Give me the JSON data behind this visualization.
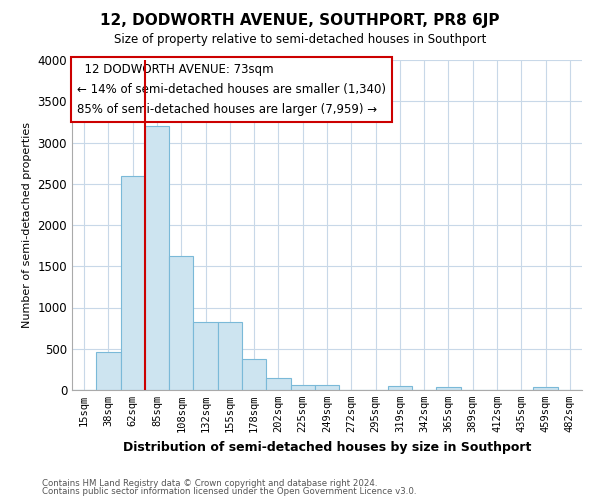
{
  "title": "12, DODWORTH AVENUE, SOUTHPORT, PR8 6JP",
  "subtitle": "Size of property relative to semi-detached houses in Southport",
  "xlabel": "Distribution of semi-detached houses by size in Southport",
  "ylabel": "Number of semi-detached properties",
  "annotation_line1": "12 DODWORTH AVENUE: 73sqm",
  "annotation_line2": "← 14% of semi-detached houses are smaller (1,340)",
  "annotation_line3": "85% of semi-detached houses are larger (7,959) →",
  "footer1": "Contains HM Land Registry data © Crown copyright and database right 2024.",
  "footer2": "Contains public sector information licensed under the Open Government Licence v3.0.",
  "categories": [
    "15sqm",
    "38sqm",
    "62sqm",
    "85sqm",
    "108sqm",
    "132sqm",
    "155sqm",
    "178sqm",
    "202sqm",
    "225sqm",
    "249sqm",
    "272sqm",
    "295sqm",
    "319sqm",
    "342sqm",
    "365sqm",
    "389sqm",
    "412sqm",
    "435sqm",
    "459sqm",
    "482sqm"
  ],
  "values": [
    5,
    460,
    2600,
    3200,
    1630,
    820,
    820,
    370,
    145,
    65,
    65,
    0,
    0,
    50,
    0,
    40,
    0,
    0,
    0,
    40,
    0
  ],
  "bar_color": "#cde4f0",
  "bar_edge_color": "#7ab9d8",
  "reference_line_color": "#cc0000",
  "annotation_box_edge_color": "#cc0000",
  "ylim": [
    0,
    4000
  ],
  "yticks": [
    0,
    500,
    1000,
    1500,
    2000,
    2500,
    3000,
    3500,
    4000
  ],
  "background_color": "#ffffff",
  "grid_color": "#c8d8e8"
}
